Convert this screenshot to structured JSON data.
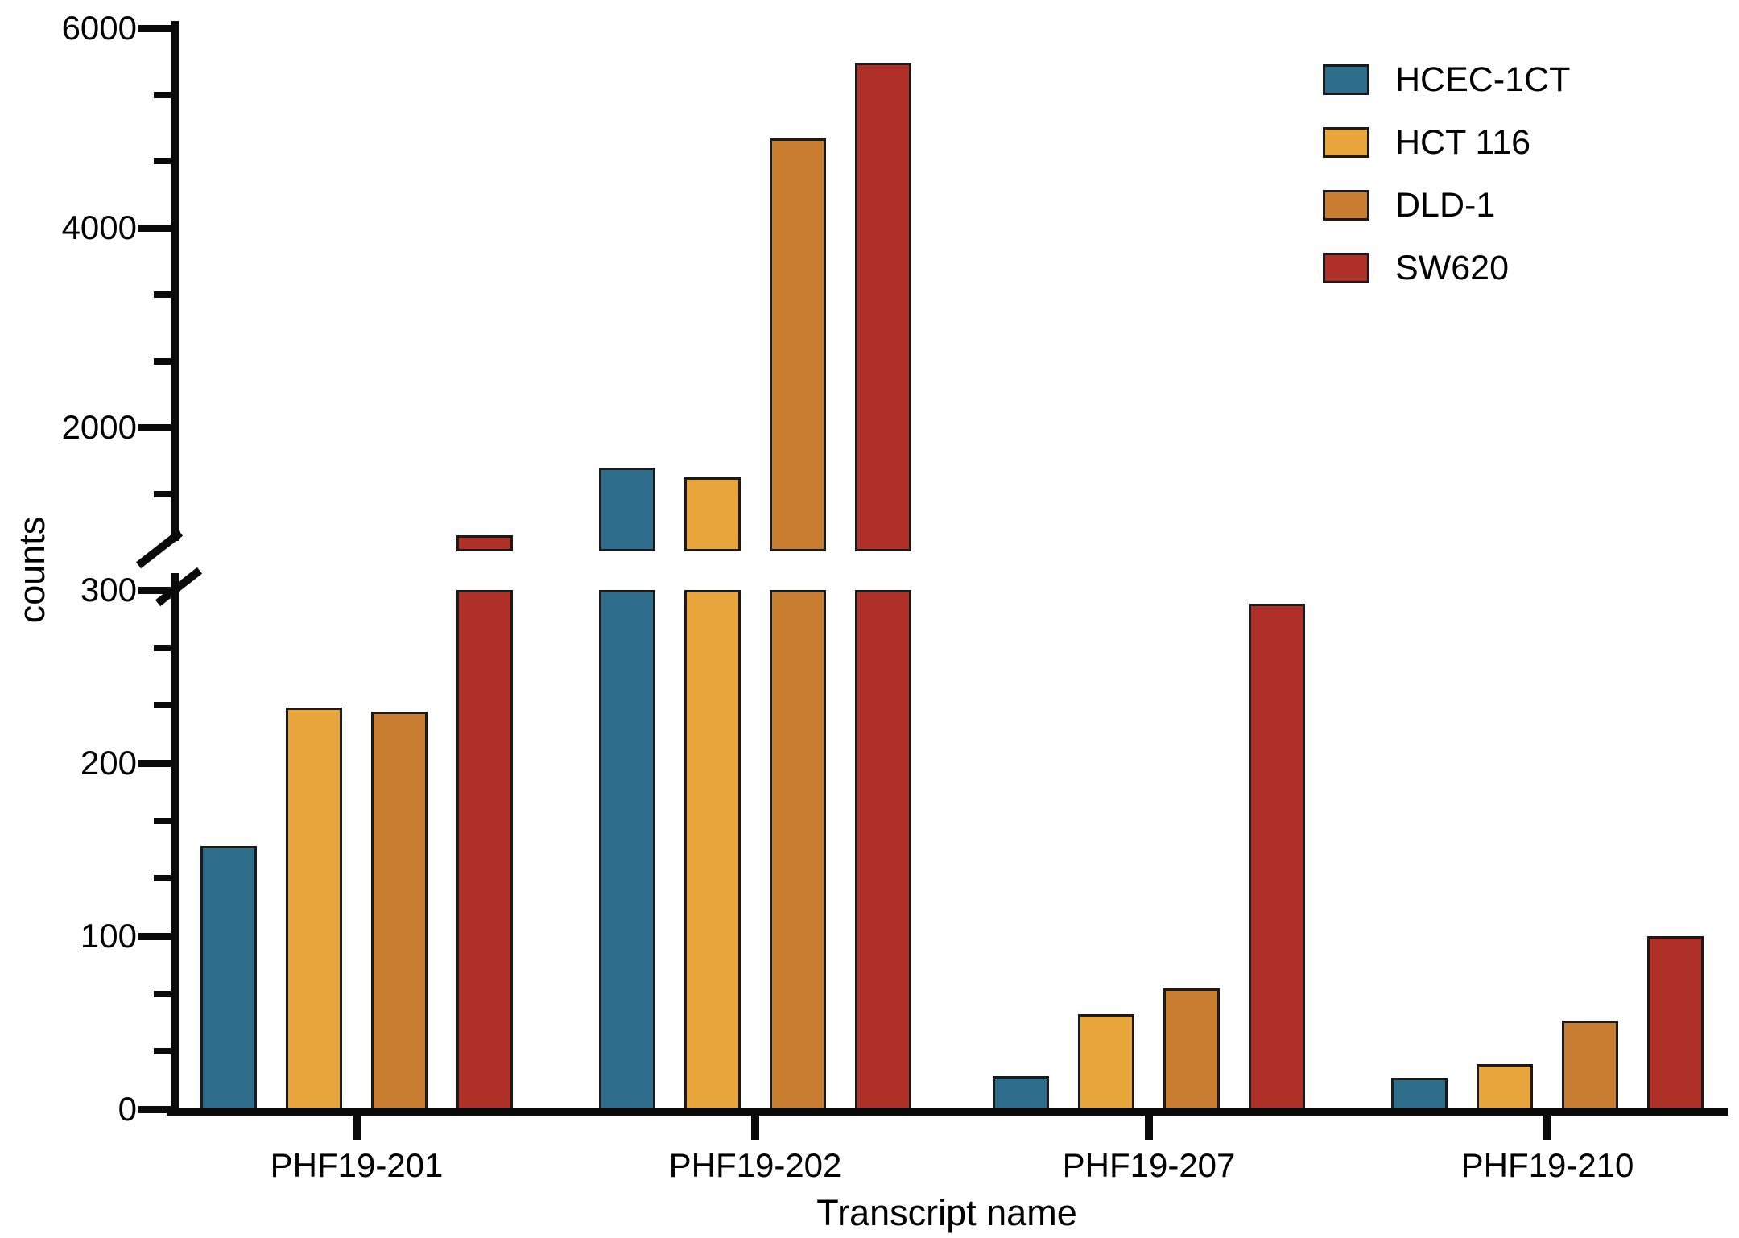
{
  "figure": {
    "y_axis_title": "counts",
    "x_axis_title": "Transcript name"
  },
  "legend": {
    "position": "top-right",
    "entries": [
      {
        "label": "HCEC-1CT",
        "color": "#2E6D8C"
      },
      {
        "label": "HCT 116",
        "color": "#E8A63C"
      },
      {
        "label": "DLD-1",
        "color": "#C87D30"
      },
      {
        "label": "SW620",
        "color": "#AF3026"
      }
    ]
  },
  "chart_data": {
    "type": "bar",
    "title": "",
    "xlabel": "Transcript name",
    "ylabel": "counts",
    "categories": [
      "PHF19-201",
      "PHF19-202",
      "PHF19-207",
      "PHF19-210"
    ],
    "series": [
      {
        "name": "HCEC-1CT",
        "color": "#2E6D8C",
        "values": [
          152,
          1600,
          19,
          18
        ]
      },
      {
        "name": "HCT 116",
        "color": "#E8A63C",
        "values": [
          232,
          1500,
          55,
          26
        ]
      },
      {
        "name": "DLD-1",
        "color": "#C87D30",
        "values": [
          230,
          4900,
          70,
          51
        ]
      },
      {
        "name": "SW620",
        "color": "#AF3026",
        "values": [
          500,
          5650,
          292,
          100
        ]
      }
    ],
    "y_axis": {
      "broken": true,
      "lower_segment": {
        "min": 0,
        "max": 300,
        "major_ticks": [
          0,
          100,
          200,
          300
        ]
      },
      "upper_segment": {
        "max": 6000,
        "major_ticks": [
          2000,
          4000,
          6000
        ]
      },
      "minor_ticks_between_majors": 2,
      "break_location": "between 300 and ~600 counts"
    },
    "bar_outline_color": "#1a1a1a",
    "background_color": "#ffffff",
    "grid": false,
    "legend_position": "top-right"
  }
}
